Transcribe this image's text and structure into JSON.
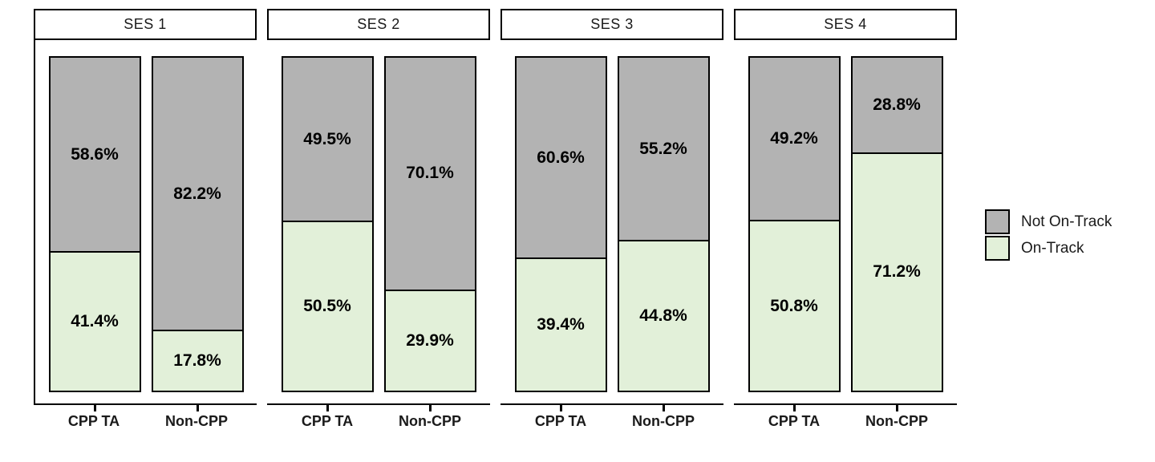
{
  "chart_data": {
    "type": "bar",
    "stacked": true,
    "units": "percent",
    "title": "",
    "xlabel": "",
    "ylabel": "",
    "ylim": [
      0,
      100
    ],
    "grid": false,
    "legend_position": "right",
    "legend": [
      {
        "label": "Not On-Track",
        "color": "#b3b3b3"
      },
      {
        "label": "On-Track",
        "color": "#e2f0d9"
      }
    ],
    "categories": [
      "CPP TA",
      "Non-CPP"
    ],
    "facets": [
      {
        "label": "SES 1",
        "bars": [
          {
            "category": "CPP TA",
            "segments": {
              "not_on_track": 58.6,
              "on_track": 41.4
            },
            "labels": {
              "not_on_track": "58.6%",
              "on_track": "41.4%"
            }
          },
          {
            "category": "Non-CPP",
            "segments": {
              "not_on_track": 82.2,
              "on_track": 17.8
            },
            "labels": {
              "not_on_track": "82.2%",
              "on_track": "17.8%"
            }
          }
        ]
      },
      {
        "label": "SES 2",
        "bars": [
          {
            "category": "CPP TA",
            "segments": {
              "not_on_track": 49.5,
              "on_track": 50.5
            },
            "labels": {
              "not_on_track": "49.5%",
              "on_track": "50.5%"
            }
          },
          {
            "category": "Non-CPP",
            "segments": {
              "not_on_track": 70.1,
              "on_track": 29.9
            },
            "labels": {
              "not_on_track": "70.1%",
              "on_track": "29.9%"
            }
          }
        ]
      },
      {
        "label": "SES 3",
        "bars": [
          {
            "category": "CPP TA",
            "segments": {
              "not_on_track": 60.6,
              "on_track": 39.4
            },
            "labels": {
              "not_on_track": "60.6%",
              "on_track": "39.4%"
            }
          },
          {
            "category": "Non-CPP",
            "segments": {
              "not_on_track": 55.2,
              "on_track": 44.8
            },
            "labels": {
              "not_on_track": "55.2%",
              "on_track": "44.8%"
            }
          }
        ]
      },
      {
        "label": "SES 4",
        "bars": [
          {
            "category": "CPP TA",
            "segments": {
              "not_on_track": 49.2,
              "on_track": 50.8
            },
            "labels": {
              "not_on_track": "49.2%",
              "on_track": "50.8%"
            }
          },
          {
            "category": "Non-CPP",
            "segments": {
              "not_on_track": 28.8,
              "on_track": 71.2
            },
            "labels": {
              "not_on_track": "28.8%",
              "on_track": "71.2%"
            }
          }
        ]
      }
    ]
  }
}
